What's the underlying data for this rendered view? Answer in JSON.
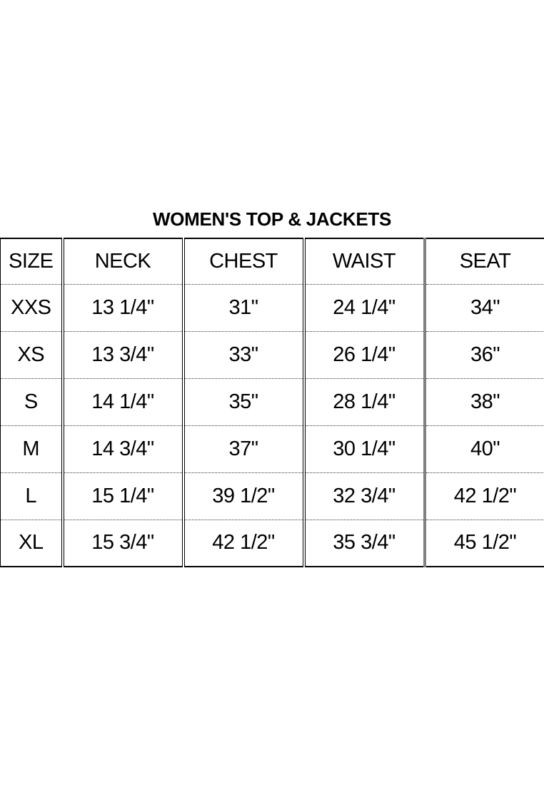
{
  "title": "WOMEN'S TOP & JACKETS",
  "table": {
    "columns": [
      "SIZE",
      "NECK",
      "CHEST",
      "WAIST",
      "SEAT"
    ],
    "rows": [
      [
        "XXS",
        "13 1/4\"",
        "31\"",
        "24 1/4\"",
        "34\""
      ],
      [
        "XS",
        "13 3/4\"",
        "33\"",
        "26 1/4\"",
        "36\""
      ],
      [
        "S",
        "14 1/4\"",
        "35\"",
        "28 1/4\"",
        "38\""
      ],
      [
        "M",
        "14 3/4\"",
        "37\"",
        "30 1/4\"",
        "40\""
      ],
      [
        "L",
        "15 1/4\"",
        "39 1/2\"",
        "32 3/4\"",
        "42 1/2\""
      ],
      [
        "XL",
        "15 3/4\"",
        "42 1/2\"",
        "35 3/4\"",
        "45 1/2\""
      ]
    ]
  },
  "colors": {
    "background": "#ffffff",
    "text": "#000000",
    "border_solid": "#000000",
    "border_thick_gray": "#808080",
    "row_separator": "#3a3a3a"
  }
}
